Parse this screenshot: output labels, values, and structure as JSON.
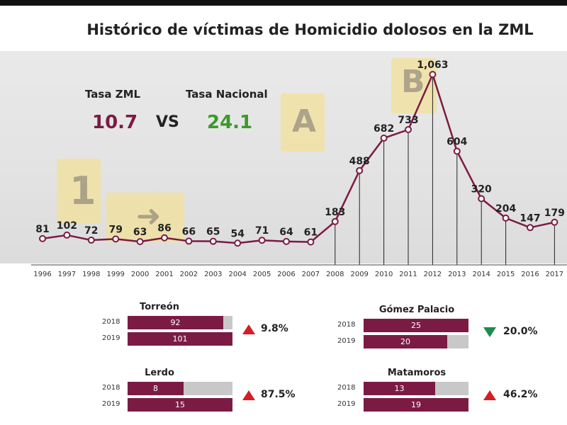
{
  "title": "Histórico de víctimas de Homicidio dolosos en la ZML",
  "tasa": {
    "zml_label": "Tasa ZML",
    "zml_value": "10.7",
    "vs": "VS",
    "nacional_label": "Tasa Nacional",
    "nacional_value": "24.1",
    "zml_color": "#7b1b44",
    "nacional_color": "#3a9a2a"
  },
  "decor": {
    "marker_1": "1",
    "marker_a": "A",
    "marker_b": "B"
  },
  "chart_data": {
    "type": "line",
    "title": "Histórico de víctimas de Homicidio dolosos en la ZML",
    "x": [
      "1996",
      "1997",
      "1998",
      "1999",
      "2000",
      "2001",
      "2002",
      "2003",
      "2004",
      "2005",
      "2006",
      "2007",
      "2008",
      "2009",
      "2010",
      "2011",
      "2012",
      "2013",
      "2014",
      "2015",
      "2016",
      "2017"
    ],
    "values": [
      81,
      102,
      72,
      79,
      63,
      86,
      66,
      65,
      54,
      71,
      64,
      61,
      183,
      488,
      682,
      733,
      1063,
      604,
      320,
      204,
      147,
      179
    ],
    "labels": [
      "81",
      "102",
      "72",
      "79",
      "63",
      "86",
      "66",
      "65",
      "54",
      "71",
      "64",
      "61",
      "183",
      "488",
      "682",
      "733",
      "1,063",
      "604",
      "320",
      "204",
      "147",
      "179"
    ],
    "color": "#7b1b44",
    "grid": false
  },
  "panels": [
    {
      "title": "Torreón",
      "rows": [
        {
          "year": "2018",
          "value": 92
        },
        {
          "year": "2019",
          "value": 101
        }
      ],
      "max": 101,
      "change": "9.8%",
      "direction": "up"
    },
    {
      "title": "Gómez Palacio",
      "rows": [
        {
          "year": "2018",
          "value": 25
        },
        {
          "year": "2019",
          "value": 20
        }
      ],
      "max": 25,
      "change": "20.0%",
      "direction": "down"
    },
    {
      "title": "Lerdo",
      "rows": [
        {
          "year": "2018",
          "value": 8
        },
        {
          "year": "2019",
          "value": 15
        }
      ],
      "max": 15,
      "change": "87.5%",
      "direction": "up"
    },
    {
      "title": "Matamoros",
      "rows": [
        {
          "year": "2018",
          "value": 13
        },
        {
          "year": "2019",
          "value": 19
        }
      ],
      "max": 19,
      "change": "46.2%",
      "direction": "up"
    }
  ]
}
